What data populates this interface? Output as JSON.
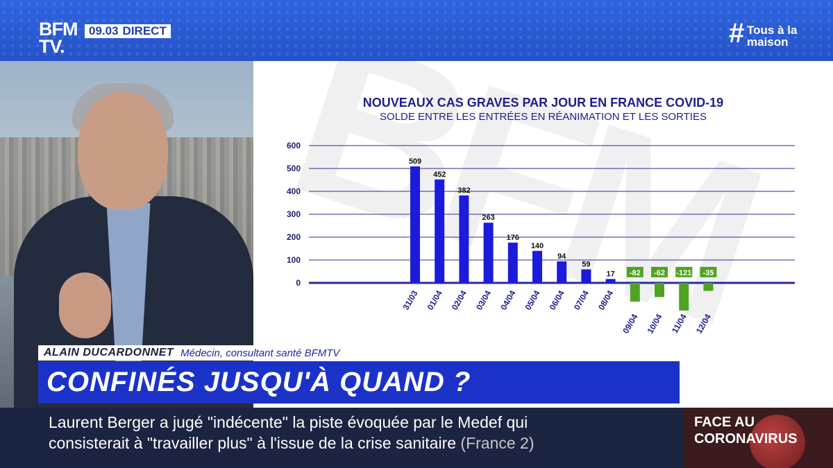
{
  "header": {
    "logo_line1": "BFM",
    "logo_line2": "TV.",
    "time": "09.03",
    "live_label": "DIRECT",
    "hashtag_symbol": "#",
    "hashtag_line1": "Tous à la",
    "hashtag_line2": "maison"
  },
  "chart_data": {
    "type": "bar",
    "title": "NOUVEAUX CAS GRAVES PAR JOUR EN FRANCE COVID-19",
    "subtitle": "SOLDE ENTRE LES ENTRÉES EN RÉANIMATION ET LES SORTIES",
    "categories": [
      "31/03",
      "01/04",
      "02/04",
      "03/04",
      "04/04",
      "05/04",
      "06/04",
      "07/04",
      "08/04",
      "09/04",
      "10/04",
      "11/04",
      "12/04"
    ],
    "values": [
      509,
      452,
      382,
      263,
      176,
      140,
      94,
      59,
      17,
      -82,
      -62,
      -121,
      -35
    ],
    "y_ticks": [
      0,
      100,
      200,
      300,
      400,
      500,
      600
    ],
    "ylim": [
      -130,
      600
    ],
    "positive_color": "#1b1bdc",
    "negative_color": "#4ea421",
    "grid_color": "#2a2a9e"
  },
  "lower_third": {
    "name": "ALAIN DUCARDONNET",
    "role": "Médecin, consultant santé BFMTV",
    "headline": "CONFINÉS JUSQU'À QUAND ?"
  },
  "ticker": {
    "line1": "Laurent Berger a jugé \"indécente\" la piste évoquée par le Medef qui",
    "line2": "consisterait à \"travailler plus\" à l'issue de la crise sanitaire",
    "source": "(France 2)"
  },
  "corner": {
    "line1": "FACE AU",
    "line2": "CORONAVIRUS"
  }
}
